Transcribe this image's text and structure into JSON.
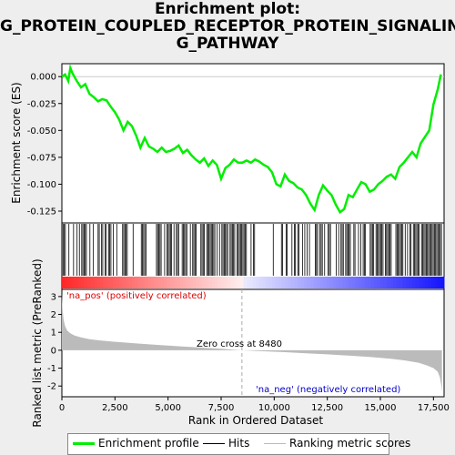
{
  "title_lines": [
    "Enrichment plot:",
    "G_PROTEIN_COUPLED_RECEPTOR_PROTEIN_SIGNALIN",
    "G_PATHWAY"
  ],
  "colors": {
    "es_line": "#00ee00",
    "hits": "#000000",
    "metric_fill": "#bbbbbb",
    "pos_label": "#dd0000",
    "neg_label": "#0000cc",
    "zero_line": "#aaaaaa"
  },
  "chart_data": [
    {
      "type": "line",
      "panel": "enrichment",
      "ylabel": "Enrichment score (ES)",
      "xlim": [
        0,
        18000
      ],
      "ylim": [
        -0.136,
        0.012
      ],
      "yticks": [
        "0.000",
        "-0.025",
        "-0.050",
        "-0.075",
        "-0.100",
        "-0.125"
      ],
      "ytick_values": [
        0,
        -0.025,
        -0.05,
        -0.075,
        -0.1,
        -0.125
      ],
      "series": [
        {
          "x": [
            0,
            150,
            300,
            400,
            500,
            700,
            900,
            1100,
            1300,
            1500,
            1700,
            1900,
            2100,
            2300,
            2500,
            2700,
            2900,
            3100,
            3300,
            3500,
            3700,
            3900,
            4100,
            4300,
            4500,
            4700,
            4900,
            5100,
            5300,
            5500,
            5700,
            5900,
            6100,
            6300,
            6500,
            6700,
            6900,
            7100,
            7300,
            7500,
            7700,
            7900,
            8100,
            8300,
            8500,
            8700,
            8900,
            9100,
            9300,
            9500,
            9700,
            9900,
            10100,
            10300,
            10500,
            10700,
            10900,
            11100,
            11300,
            11500,
            11700,
            11900,
            12100,
            12300,
            12500,
            12700,
            12900,
            13100,
            13300,
            13500,
            13700,
            13900,
            14100,
            14300,
            14500,
            14700,
            14900,
            15100,
            15300,
            15500,
            15700,
            15900,
            16100,
            16300,
            16500,
            16700,
            16900,
            17100,
            17300,
            17500,
            17700,
            17850
          ],
          "y": [
            0.0,
            0.002,
            -0.004,
            0.008,
            0.003,
            -0.004,
            -0.01,
            -0.007,
            -0.016,
            -0.019,
            -0.023,
            -0.021,
            -0.022,
            -0.028,
            -0.033,
            -0.04,
            -0.05,
            -0.042,
            -0.046,
            -0.055,
            -0.066,
            -0.057,
            -0.065,
            -0.067,
            -0.07,
            -0.066,
            -0.07,
            -0.069,
            -0.067,
            -0.064,
            -0.071,
            -0.068,
            -0.073,
            -0.077,
            -0.08,
            -0.076,
            -0.083,
            -0.078,
            -0.082,
            -0.095,
            -0.085,
            -0.082,
            -0.077,
            -0.08,
            -0.08,
            -0.078,
            -0.08,
            -0.077,
            -0.079,
            -0.082,
            -0.084,
            -0.089,
            -0.1,
            -0.102,
            -0.091,
            -0.097,
            -0.099,
            -0.103,
            -0.105,
            -0.11,
            -0.118,
            -0.124,
            -0.11,
            -0.101,
            -0.106,
            -0.11,
            -0.119,
            -0.126,
            -0.123,
            -0.11,
            -0.112,
            -0.105,
            -0.098,
            -0.1,
            -0.107,
            -0.105,
            -0.1,
            -0.097,
            -0.093,
            -0.091,
            -0.095,
            -0.084,
            -0.08,
            -0.075,
            -0.07,
            -0.075,
            -0.062,
            -0.056,
            -0.05,
            -0.026,
            -0.012,
            0.002
          ]
        }
      ]
    },
    {
      "type": "area",
      "panel": "ranked_metric",
      "ylabel": "Ranked list metric (PreRanked)",
      "xlabel": "Rank in Ordered Dataset",
      "xlim": [
        0,
        18000
      ],
      "ylim": [
        -2.6,
        3.4
      ],
      "xticks": [
        "0",
        "2,500",
        "5,000",
        "7,500",
        "10,000",
        "12,500",
        "15,000",
        "17,500"
      ],
      "xtick_values": [
        0,
        2500,
        5000,
        7500,
        10000,
        12500,
        15000,
        17500
      ],
      "yticks": [
        "3",
        "2",
        "1",
        "0",
        "-1",
        "-2"
      ],
      "ytick_values": [
        3,
        2,
        1,
        0,
        -1,
        -2
      ],
      "x": [
        0,
        30,
        80,
        150,
        250,
        400,
        600,
        900,
        1300,
        1800,
        2500,
        3500,
        4500,
        5500,
        6500,
        7500,
        8480,
        9500,
        10500,
        11500,
        12500,
        13500,
        14500,
        15500,
        16200,
        16800,
        17200,
        17500,
        17700,
        17800,
        17860,
        17900
      ],
      "y": [
        3.2,
        2.3,
        1.7,
        1.35,
        1.1,
        0.95,
        0.82,
        0.72,
        0.62,
        0.55,
        0.47,
        0.38,
        0.3,
        0.22,
        0.15,
        0.08,
        0.0,
        -0.06,
        -0.11,
        -0.17,
        -0.23,
        -0.3,
        -0.38,
        -0.48,
        -0.58,
        -0.7,
        -0.85,
        -1.0,
        -1.2,
        -1.5,
        -1.9,
        -2.3
      ],
      "annotations": {
        "zero_cross": "Zero cross at 8480",
        "pos_label": "'na_pos' (positively correlated)",
        "neg_label": "'na_neg' (negatively correlated)"
      }
    }
  ],
  "legend": [
    {
      "label": "Enrichment profile"
    },
    {
      "label": "Hits"
    },
    {
      "label": "Ranking metric scores"
    }
  ]
}
